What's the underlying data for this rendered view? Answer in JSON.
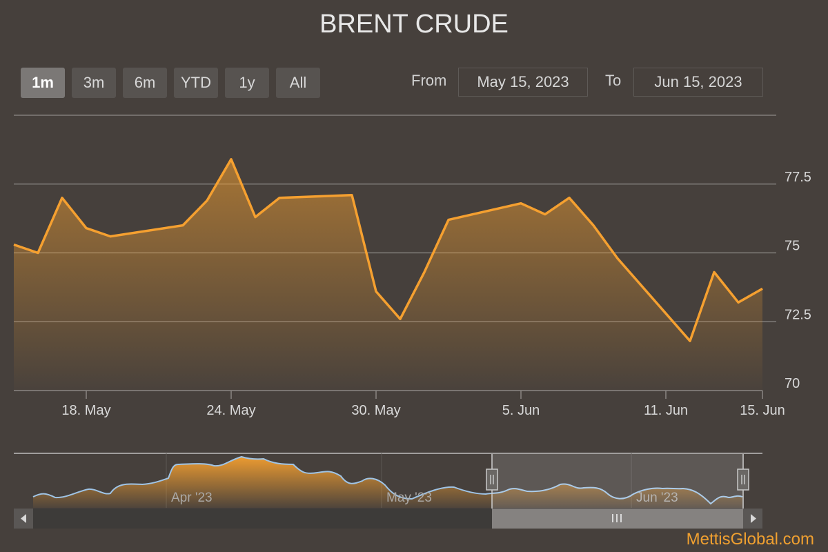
{
  "chart_data": {
    "type": "area",
    "title": "BRENT CRUDE",
    "x": [
      "2023-05-15",
      "2023-05-16",
      "2023-05-17",
      "2023-05-18",
      "2023-05-19",
      "2023-05-22",
      "2023-05-23",
      "2023-05-24",
      "2023-05-25",
      "2023-05-26",
      "2023-05-29",
      "2023-05-30",
      "2023-05-31",
      "2023-06-01",
      "2023-06-02",
      "2023-06-05",
      "2023-06-06",
      "2023-06-07",
      "2023-06-08",
      "2023-06-09",
      "2023-06-12",
      "2023-06-13",
      "2023-06-14",
      "2023-06-15"
    ],
    "series": [
      {
        "values": [
          75.3,
          75.0,
          77.0,
          75.9,
          75.6,
          76.0,
          76.9,
          78.4,
          76.3,
          77.0,
          77.1,
          73.6,
          72.6,
          74.3,
          76.2,
          76.8,
          76.4,
          77.0,
          76.0,
          74.8,
          71.8,
          74.3,
          73.2,
          73.7
        ]
      }
    ],
    "ylim": [
      70,
      80
    ],
    "yticks": [
      "70",
      "72.5",
      "75",
      "77.5"
    ],
    "xticks": [
      "18. May",
      "24. May",
      "30. May",
      "5. Jun",
      "11. Jun",
      "15. Jun"
    ],
    "grid": true,
    "line_color": "#f5a030",
    "navigator": {
      "labels": [
        "Apr '23",
        "May '23",
        "Jun '23"
      ],
      "selected_from": "2023-05-15",
      "selected_to": "2023-06-15"
    }
  },
  "toolbar": {
    "buttons": [
      {
        "label": "1m",
        "active": true
      },
      {
        "label": "3m",
        "active": false
      },
      {
        "label": "6m",
        "active": false
      },
      {
        "label": "YTD",
        "active": false
      },
      {
        "label": "1y",
        "active": false
      },
      {
        "label": "All",
        "active": false
      }
    ],
    "from_label": "From",
    "from_value": "May 15, 2023",
    "to_label": "To",
    "to_value": "Jun 15, 2023"
  },
  "watermark": "MettisGlobal.com"
}
